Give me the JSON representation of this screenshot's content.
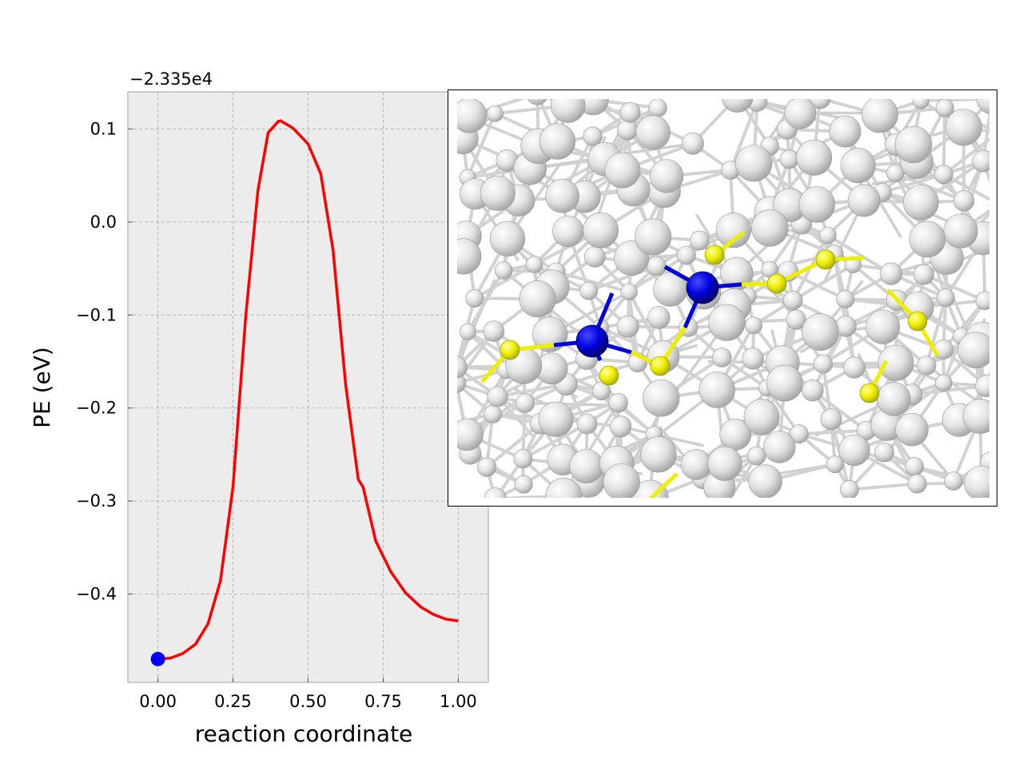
{
  "chart_data": {
    "type": "line",
    "title": "",
    "offset_label": "−2.335e4",
    "xlabel": "reaction coordinate",
    "ylabel": "PE (eV)",
    "xlim": [
      -0.1,
      1.1
    ],
    "ylim": [
      -0.495,
      0.14
    ],
    "xticks": [
      0.0,
      0.25,
      0.5,
      0.75,
      1.0
    ],
    "xtick_labels": [
      "0.00",
      "0.25",
      "0.50",
      "0.75",
      "1.00"
    ],
    "yticks": [
      0.1,
      0.0,
      -0.1,
      -0.2,
      -0.3,
      -0.4
    ],
    "ytick_labels": [
      "0.1",
      "0.0",
      "−0.1",
      "−0.2",
      "−0.3",
      "−0.4"
    ],
    "grid": true,
    "background": "#ececec",
    "series": [
      {
        "color": "#ff0000",
        "x": [
          0.0,
          0.042,
          0.083,
          0.125,
          0.167,
          0.208,
          0.25,
          0.292,
          0.333,
          0.367,
          0.4,
          0.408,
          0.45,
          0.5,
          0.542,
          0.583,
          0.625,
          0.667,
          0.683,
          0.725,
          0.775,
          0.825,
          0.875,
          0.917,
          0.958,
          1.0
        ],
        "y": [
          -0.47,
          -0.469,
          -0.464,
          -0.454,
          -0.432,
          -0.386,
          -0.285,
          -0.103,
          0.034,
          0.096,
          0.108,
          0.109,
          0.101,
          0.084,
          0.052,
          -0.03,
          -0.175,
          -0.277,
          -0.285,
          -0.343,
          -0.376,
          -0.399,
          -0.414,
          -0.422,
          -0.427,
          -0.429
        ]
      }
    ],
    "marker": {
      "x": 0.0,
      "y": -0.47,
      "color": "#0000ff"
    }
  },
  "inset": {
    "type": "atomistic-snapshot",
    "atom_colors": {
      "host": "#e0e0e0",
      "highlight_yellow": "#eeee00",
      "highlight_blue": "#0000dd"
    }
  }
}
